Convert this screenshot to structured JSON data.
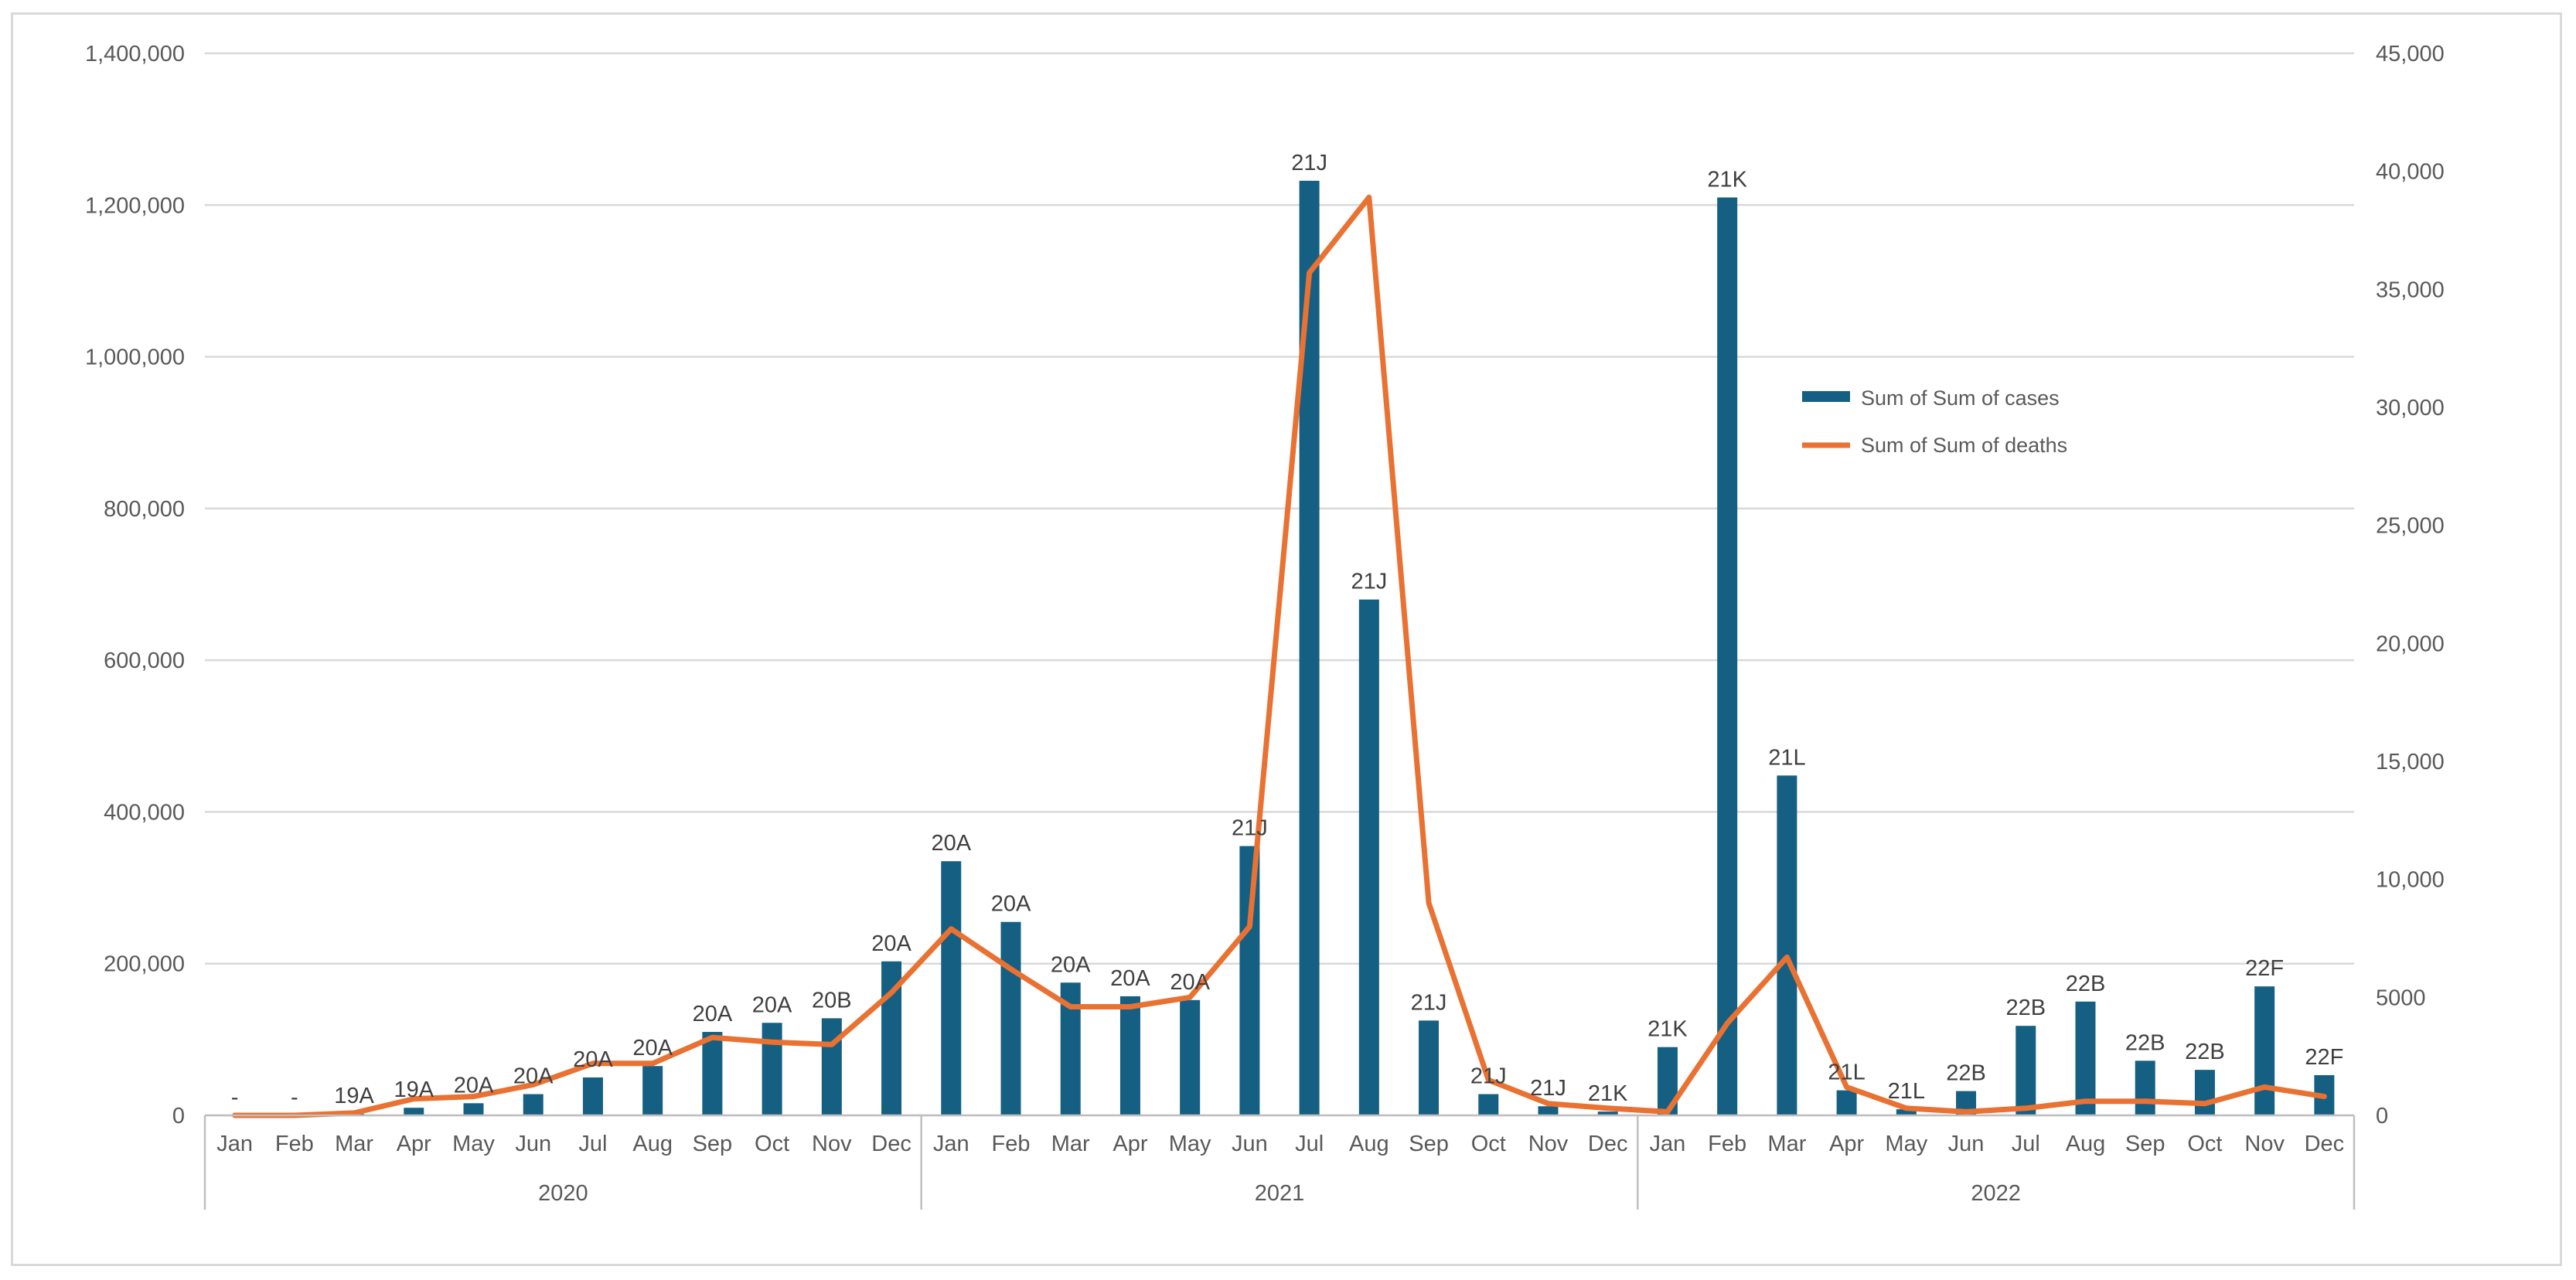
{
  "chart_data": {
    "type": "bar+line",
    "title": "",
    "categories": [
      "Jan",
      "Feb",
      "Mar",
      "Apr",
      "May",
      "Jun",
      "Jul",
      "Aug",
      "Sep",
      "Oct",
      "Nov",
      "Dec",
      "Jan",
      "Feb",
      "Mar",
      "Apr",
      "May",
      "Jun",
      "Jul",
      "Aug",
      "Sep",
      "Oct",
      "Nov",
      "Dec",
      "Jan",
      "Feb",
      "Mar",
      "Apr",
      "May",
      "Jun",
      "Jul",
      "Aug",
      "Sep",
      "Oct",
      "Nov",
      "Dec"
    ],
    "years": [
      {
        "label": "2020",
        "start": 0,
        "end": 11
      },
      {
        "label": "2021",
        "start": 12,
        "end": 23
      },
      {
        "label": "2022",
        "start": 24,
        "end": 35
      }
    ],
    "series": [
      {
        "name": "Sum of Sum of cases",
        "type": "bar",
        "axis": "left",
        "color": "#156082",
        "values": [
          0,
          0,
          2000,
          10000,
          16000,
          28000,
          50000,
          65000,
          110000,
          122000,
          128000,
          203000,
          335000,
          255000,
          175000,
          157000,
          152000,
          355000,
          1232000,
          680000,
          125000,
          28000,
          12000,
          5000,
          90000,
          1210000,
          448000,
          33000,
          8000,
          32000,
          118000,
          150000,
          72000,
          60000,
          170000,
          53000
        ],
        "labels": [
          "-",
          "-",
          "19A",
          "19A",
          "20A",
          "20A",
          "20A",
          "20A",
          "20A",
          "20A",
          "20B",
          "20A",
          "20A",
          "20A",
          "20A",
          "20A",
          "20A",
          "21J",
          "21J",
          "21J",
          "21J",
          "21J",
          "21J",
          "21K",
          "21K",
          "21K",
          "21L",
          "21L",
          "21L",
          "22B",
          "22B",
          "22B",
          "22B",
          "22B",
          "22F",
          "22F"
        ]
      },
      {
        "name": "Sum of Sum of deaths",
        "type": "line",
        "axis": "right",
        "color": "#E97132",
        "values": [
          0,
          0,
          100,
          700,
          800,
          1300,
          2200,
          2200,
          3300,
          3100,
          3000,
          5200,
          7900,
          6200,
          4600,
          4600,
          5000,
          8000,
          35700,
          38900,
          9000,
          1500,
          500,
          300,
          150,
          3900,
          6700,
          1200,
          300,
          150,
          300,
          600,
          600,
          500,
          1200,
          800
        ]
      }
    ],
    "y_left": {
      "min": 0,
      "max": 1400000,
      "step": 200000,
      "ticks": [
        "0",
        "200,000",
        "400,000",
        "600,000",
        "800,000",
        "1,000,000",
        "1,200,000",
        "1,400,000"
      ]
    },
    "y_right": {
      "min": 0,
      "max": 45000,
      "step": 5000,
      "ticks": [
        "0",
        "5000",
        "10,000",
        "15,000",
        "20,000",
        "25,000",
        "30,000",
        "35,000",
        "40,000",
        "45,000"
      ]
    },
    "legend": {
      "position": "right-inside-upper",
      "items": [
        "Sum of Sum of cases",
        "Sum of Sum of deaths"
      ]
    },
    "grid": true
  }
}
